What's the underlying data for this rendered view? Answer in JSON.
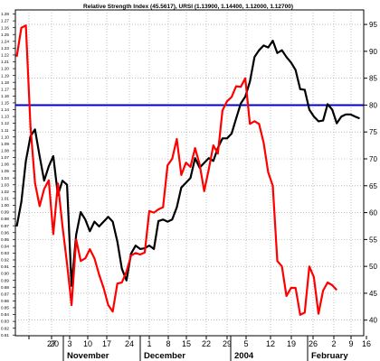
{
  "chart_data": {
    "type": "line",
    "title": "Relative Strength Index (45.5617), URSI (1.13900, 1.14400, 1.12000, 1.12700)",
    "xlabel": "",
    "ylabel": "",
    "grid": true,
    "legend": "none",
    "x_day_ticks": [
      "20",
      "27",
      "3",
      "10",
      "17",
      "24",
      "1",
      "8",
      "15",
      "22",
      "29",
      "5",
      "12",
      "19",
      "26",
      "2",
      "9",
      "16"
    ],
    "x_month_labels": [
      "November",
      "December",
      "2004",
      "February"
    ],
    "left_axis": {
      "ylim": [
        0.809,
        1.286
      ],
      "ticks": [
        "0.81",
        "0.82",
        "0.83",
        "0.84",
        "0.85",
        "0.86",
        "0.87",
        "0.88",
        "0.89",
        "0.90",
        "0.91",
        "0.92",
        "0.93",
        "0.94",
        "0.95",
        "0.96",
        "0.97",
        "0.98",
        "0.99",
        "1.00",
        "1.01",
        "1.02",
        "1.03",
        "1.04",
        "1.05",
        "1.06",
        "1.07",
        "1.08",
        "1.09",
        "1.10",
        "1.11",
        "1.12",
        "1.13",
        "1.14",
        "1.15",
        "1.16",
        "1.17",
        "1.18",
        "1.19",
        "1.20",
        "1.21",
        "1.22",
        "1.23",
        "1.24",
        "1.25",
        "1.26",
        "1.27",
        "1.28"
      ]
    },
    "right_axis": {
      "ylim": [
        37.1,
        97.7
      ],
      "ticks": [
        40,
        45,
        50,
        55,
        60,
        65,
        70,
        75,
        80,
        85,
        90,
        95
      ]
    },
    "reference_line": {
      "axis": "right",
      "value": 80,
      "color": "#0000cc"
    },
    "series": [
      {
        "axis": "left",
        "color": "#000000",
        "values": [
          [
            0,
            0.969
          ],
          [
            1,
            1.005
          ],
          [
            2,
            1.065
          ],
          [
            3,
            1.101
          ],
          [
            4,
            1.111
          ],
          [
            5,
            1.072
          ],
          [
            6,
            1.036
          ],
          [
            7,
            1.057
          ],
          [
            8,
            1.072
          ],
          [
            9,
            1.015
          ],
          [
            10,
            1.036
          ],
          [
            11,
            1.03
          ],
          [
            12,
            0.882
          ],
          [
            13,
            0.957
          ],
          [
            14,
            0.99
          ],
          [
            15,
            0.979
          ],
          [
            16,
            0.962
          ],
          [
            17,
            0.976
          ],
          [
            18,
            0.969
          ],
          [
            19,
            0.976
          ],
          [
            20,
            0.983
          ],
          [
            21,
            0.976
          ],
          [
            22,
            0.947
          ],
          [
            23,
            0.907
          ],
          [
            24,
            0.89
          ],
          [
            25,
            0.929
          ],
          [
            26,
            0.941
          ],
          [
            27,
            0.936
          ],
          [
            28,
            0.937
          ],
          [
            29,
            0.941
          ],
          [
            30,
            0.936
          ],
          [
            31,
            0.977
          ],
          [
            32,
            0.979
          ],
          [
            33,
            0.976
          ],
          [
            34,
            0.979
          ],
          [
            35,
            0.997
          ],
          [
            36,
            1.026
          ],
          [
            37,
            1.033
          ],
          [
            38,
            1.04
          ],
          [
            39,
            1.069
          ],
          [
            40,
            1.055
          ],
          [
            41,
            1.062
          ],
          [
            42,
            1.069
          ],
          [
            43,
            1.065
          ],
          [
            44,
            1.084
          ],
          [
            45,
            1.098
          ],
          [
            46,
            1.098
          ],
          [
            47,
            1.105
          ],
          [
            48,
            1.127
          ],
          [
            49,
            1.149
          ],
          [
            50,
            1.159
          ],
          [
            51,
            1.181
          ],
          [
            52,
            1.217
          ],
          [
            53,
            1.227
          ],
          [
            54,
            1.234
          ],
          [
            55,
            1.231
          ],
          [
            56,
            1.241
          ],
          [
            57,
            1.223
          ],
          [
            58,
            1.227
          ],
          [
            59,
            1.217
          ],
          [
            60,
            1.209
          ],
          [
            61,
            1.198
          ],
          [
            62,
            1.17
          ],
          [
            63,
            1.169
          ],
          [
            64,
            1.14
          ],
          [
            65,
            1.13
          ],
          [
            66,
            1.123
          ],
          [
            67,
            1.124
          ],
          [
            68,
            1.148
          ],
          [
            69,
            1.14
          ],
          [
            70,
            1.12
          ],
          [
            71,
            1.13
          ],
          [
            72,
            1.133
          ],
          [
            73,
            1.133
          ],
          [
            74,
            1.13
          ],
          [
            75,
            1.127
          ]
        ]
      },
      {
        "axis": "right",
        "color": "#ff0000",
        "values": [
          [
            0,
            89.0
          ],
          [
            1,
            94.4
          ],
          [
            2,
            94.8
          ],
          [
            3,
            76.0
          ],
          [
            4,
            65.5
          ],
          [
            5,
            61.2
          ],
          [
            6,
            64.4
          ],
          [
            7,
            66.0
          ],
          [
            8,
            56.0
          ],
          [
            9,
            65.4
          ],
          [
            10,
            57.6
          ],
          [
            11,
            50.5
          ],
          [
            12,
            42.8
          ],
          [
            13,
            55.0
          ],
          [
            14,
            51.0
          ],
          [
            15,
            51.5
          ],
          [
            16,
            53.2
          ],
          [
            17,
            51.5
          ],
          [
            18,
            48.5
          ],
          [
            19,
            46.0
          ],
          [
            20,
            42.8
          ],
          [
            21,
            41.6
          ],
          [
            22,
            46.8
          ],
          [
            23,
            47.0
          ],
          [
            24,
            49.0
          ],
          [
            25,
            52.0
          ],
          [
            26,
            52.5
          ],
          [
            27,
            52.2
          ],
          [
            28,
            52.6
          ],
          [
            29,
            60.3
          ],
          [
            30,
            60.0
          ],
          [
            31,
            60.6
          ],
          [
            32,
            61.0
          ],
          [
            33,
            68.8
          ],
          [
            34,
            70.0
          ],
          [
            35,
            73.7
          ],
          [
            36,
            67.0
          ],
          [
            37,
            69.3
          ],
          [
            38,
            68.5
          ],
          [
            39,
            72.0
          ],
          [
            40,
            69.0
          ],
          [
            41,
            64.0
          ],
          [
            42,
            68.0
          ],
          [
            43,
            72.5
          ],
          [
            44,
            71.0
          ],
          [
            45,
            79.0
          ],
          [
            46,
            80.7
          ],
          [
            47,
            81.5
          ],
          [
            48,
            83.5
          ],
          [
            49,
            83.4
          ],
          [
            50,
            85.0
          ],
          [
            51,
            76.5
          ],
          [
            52,
            77.0
          ],
          [
            53,
            76.5
          ],
          [
            54,
            73.0
          ],
          [
            55,
            67.5
          ],
          [
            56,
            65.0
          ],
          [
            57,
            51.0
          ],
          [
            58,
            50.0
          ],
          [
            59,
            44.5
          ],
          [
            60,
            46.0
          ],
          [
            61,
            46.0
          ],
          [
            62,
            41.0
          ],
          [
            63,
            41.4
          ],
          [
            64,
            50.0
          ],
          [
            65,
            48.0
          ],
          [
            66,
            41.2
          ],
          [
            67,
            45.5
          ],
          [
            68,
            47.0
          ],
          [
            69,
            46.5
          ],
          [
            70,
            45.6
          ]
        ]
      }
    ]
  }
}
